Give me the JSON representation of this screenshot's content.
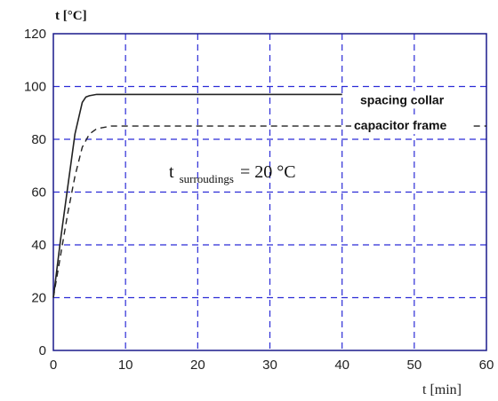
{
  "chart_data": {
    "type": "line",
    "ylabel": "t [°C]",
    "xlabel": "t [min]",
    "xlim": [
      0,
      60
    ],
    "ylim": [
      0,
      120
    ],
    "xticks": [
      0,
      10,
      20,
      30,
      40,
      50,
      60
    ],
    "yticks": [
      0,
      20,
      40,
      60,
      80,
      100,
      120
    ],
    "grid": true,
    "series": [
      {
        "name": "spacing collar",
        "style": "solid",
        "x": [
          0,
          1,
          2,
          3,
          4,
          4.5,
          5,
          6,
          10,
          20,
          30,
          40
        ],
        "y": [
          20,
          42,
          62,
          82,
          94,
          96,
          96.5,
          97,
          97,
          97,
          97,
          97
        ]
      },
      {
        "name": "capacitor frame",
        "style": "dashed",
        "x": [
          0,
          1,
          2,
          3,
          4,
          5,
          6,
          8,
          10,
          20,
          30,
          40,
          50,
          60
        ],
        "y": [
          20,
          36,
          52,
          66,
          77,
          82,
          84,
          85,
          85,
          85,
          85,
          85,
          85,
          85
        ]
      }
    ],
    "annotation": {
      "main": "t",
      "subscript": "surroudings",
      "rest": "= 20 °C"
    },
    "colors": {
      "grid": "#2b2bd6",
      "axes": "#1a1a8c",
      "series": "#222222"
    }
  }
}
